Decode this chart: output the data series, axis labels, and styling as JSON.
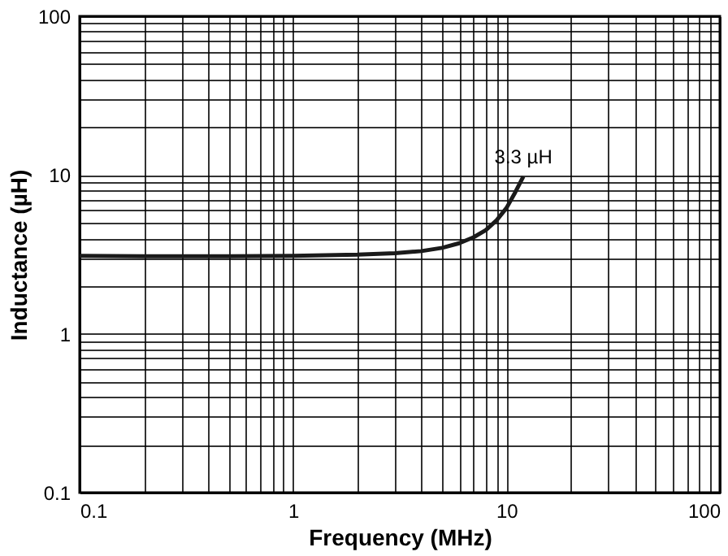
{
  "chart_data": {
    "type": "line",
    "xlabel": "Frequency (MHz)",
    "ylabel": "Inductance (µH)",
    "log": "xy",
    "grid": true,
    "xlim": [
      0.1,
      100
    ],
    "ylim": [
      0.1,
      100
    ],
    "xticks": [
      0.1,
      {
        "value": 0.2,
        "label": null
      },
      {
        "value": 0.3,
        "label": null
      },
      {
        "value": 0.4,
        "label": null
      },
      {
        "value": 0.5,
        "label": null
      },
      {
        "value": 0.6,
        "label": null
      },
      {
        "value": 0.7,
        "label": null
      },
      {
        "value": 0.8,
        "label": null
      },
      {
        "value": 0.9,
        "label": null
      },
      1,
      {
        "value": 2,
        "label": null
      },
      {
        "value": 3,
        "label": null
      },
      {
        "value": 4,
        "label": null
      },
      {
        "value": 5,
        "label": null
      },
      {
        "value": 6,
        "label": null
      },
      {
        "value": 7,
        "label": null
      },
      {
        "value": 8,
        "label": null
      },
      {
        "value": 9,
        "label": null
      },
      10,
      {
        "value": 20,
        "label": null
      },
      {
        "value": 30,
        "label": null
      },
      {
        "value": 40,
        "label": null
      },
      {
        "value": 50,
        "label": null
      },
      {
        "value": 60,
        "label": null
      },
      {
        "value": 70,
        "label": null
      },
      {
        "value": 80,
        "label": null
      },
      {
        "value": 90,
        "label": null
      },
      100
    ],
    "yticks": [
      0.1,
      {
        "value": 0.2,
        "label": null
      },
      {
        "value": 0.3,
        "label": null
      },
      {
        "value": 0.4,
        "label": null
      },
      {
        "value": 0.5,
        "label": null
      },
      {
        "value": 0.6,
        "label": null
      },
      {
        "value": 0.7,
        "label": null
      },
      {
        "value": 0.8,
        "label": null
      },
      {
        "value": 0.9,
        "label": null
      },
      1,
      {
        "value": 2,
        "label": null
      },
      {
        "value": 3,
        "label": null
      },
      {
        "value": 4,
        "label": null
      },
      {
        "value": 5,
        "label": null
      },
      {
        "value": 6,
        "label": null
      },
      {
        "value": 7,
        "label": null
      },
      {
        "value": 8,
        "label": null
      },
      {
        "value": 9,
        "label": null
      },
      10,
      {
        "value": 20,
        "label": null
      },
      {
        "value": 30,
        "label": null
      },
      {
        "value": 40,
        "label": null
      },
      {
        "value": 50,
        "label": null
      },
      {
        "value": 60,
        "label": null
      },
      {
        "value": 70,
        "label": null
      },
      {
        "value": 80,
        "label": null
      },
      {
        "value": 90,
        "label": null
      },
      100
    ],
    "series": [
      {
        "color": "#1a1a1a",
        "x": [
          0.1,
          0.2,
          0.5,
          1,
          2,
          3,
          4,
          5,
          6,
          7,
          8,
          9,
          10,
          11,
          12
        ],
        "values": [
          3.1,
          3.08,
          3.08,
          3.1,
          3.15,
          3.22,
          3.32,
          3.48,
          3.72,
          4.05,
          4.5,
          5.2,
          6.2,
          7.8,
          9.8
        ]
      }
    ],
    "annotations": [
      {
        "text": "3.3 µH",
        "x": 12,
        "y": 9.8
      }
    ]
  }
}
